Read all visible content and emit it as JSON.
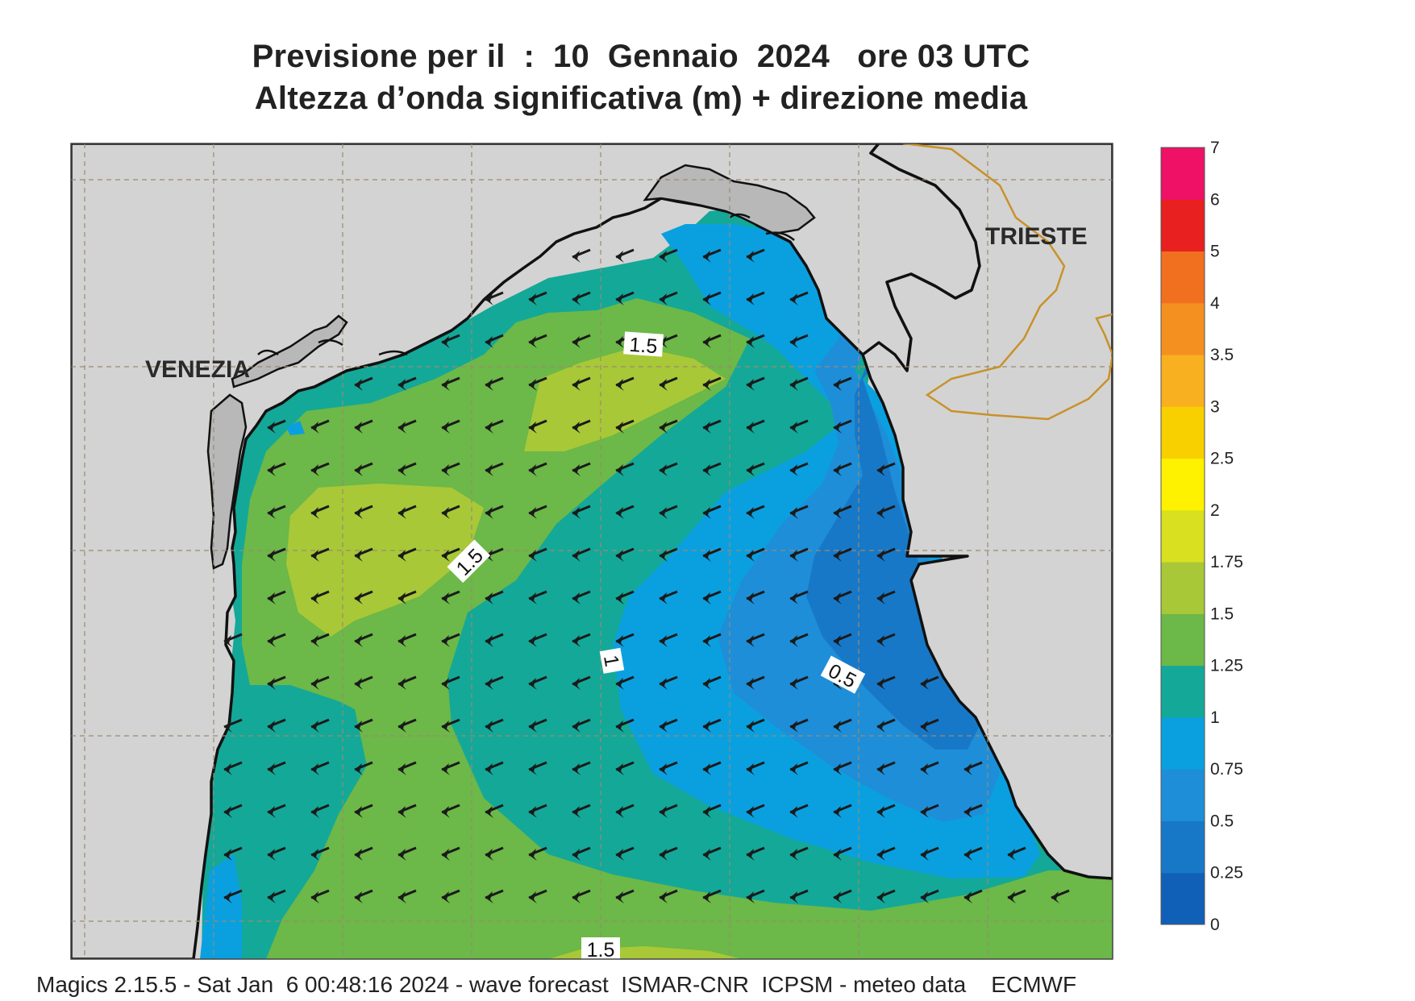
{
  "title": {
    "line1": "Previsione per il  :  10  Gennaio  2024   ore 03 UTC",
    "line2": "Altezza d’onda significativa (m) + direzione media"
  },
  "places": {
    "venezia": "VENEZIA",
    "trieste": "TRIESTE"
  },
  "contour_labels": [
    "1.5",
    "1.5",
    "1",
    "0.5",
    "1.5"
  ],
  "colorbar": {
    "ticks": [
      "7",
      "6",
      "5",
      "4",
      "3.5",
      "3",
      "2.5",
      "2",
      "1.75",
      "1.5",
      "1.25",
      "1",
      "0.75",
      "0.5",
      "0.25",
      "0"
    ],
    "colors": [
      "#ee1166",
      "#e82020",
      "#f07020",
      "#f49020",
      "#f8b020",
      "#f8d000",
      "#fff200",
      "#d8e020",
      "#a8c838",
      "#6cb848",
      "#14a898",
      "#0aa0e0",
      "#1e8ed8",
      "#1878c8",
      "#1060b8"
    ]
  },
  "wave_direction": "SW",
  "footer": "Magics 2.15.5 - Sat Jan  6 00:48:16 2024 - wave forecast  ISMAR-CNR  ICPSM - meteo data    ECMWF",
  "colors": {
    "land": "#d3d3d3",
    "coast": "#111111",
    "border": "#c8922a",
    "grid": "#9a8a70",
    "arrow": "#1a1a1a"
  }
}
